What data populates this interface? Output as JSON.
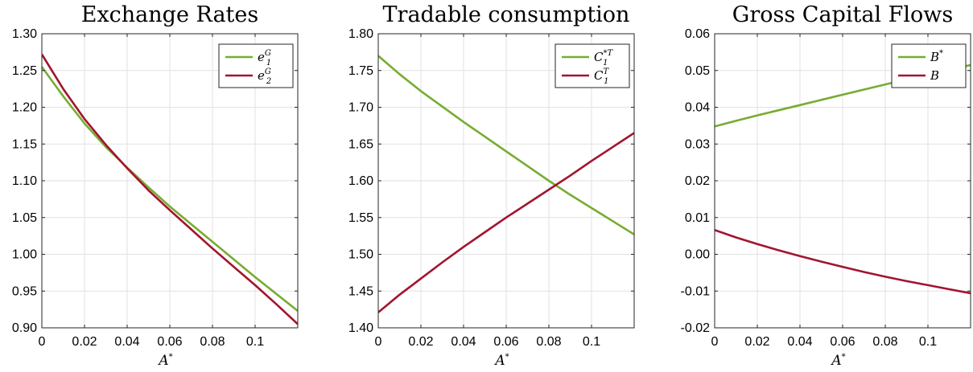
{
  "chart_data": [
    {
      "type": "line",
      "title": "Exchange Rates",
      "xlabel": "A*",
      "ylabel": "",
      "xlim": [
        0,
        0.12
      ],
      "ylim": [
        0.9,
        1.3
      ],
      "grid": true,
      "legend_position": "top-right",
      "xticks": [
        0,
        0.02,
        0.04,
        0.06,
        0.08,
        0.1
      ],
      "xtick_labels": [
        "0",
        "0.02",
        "0.04",
        "0.06",
        "0.08",
        "0.1"
      ],
      "yticks": [
        0.9,
        0.95,
        1.0,
        1.05,
        1.1,
        1.15,
        1.2,
        1.25,
        1.3
      ],
      "ytick_labels": [
        "0.90",
        "0.95",
        "1.00",
        "1.05",
        "1.10",
        "1.15",
        "1.20",
        "1.25",
        "1.30"
      ],
      "x": [
        0,
        0.01,
        0.02,
        0.03,
        0.04,
        0.05,
        0.06,
        0.07,
        0.08,
        0.09,
        0.1,
        0.11,
        0.12
      ],
      "series": [
        {
          "name": "e1G",
          "legend_base": "e",
          "legend_sub": "1",
          "legend_sup": "G",
          "color": "#77AC30",
          "values": [
            1.255,
            1.215,
            1.178,
            1.146,
            1.118,
            1.091,
            1.065,
            1.041,
            1.017,
            0.993,
            0.969,
            0.946,
            0.923
          ]
        },
        {
          "name": "e2G",
          "legend_base": "e",
          "legend_sub": "2",
          "legend_sup": "G",
          "color": "#A2142F",
          "values": [
            1.272,
            1.225,
            1.184,
            1.149,
            1.117,
            1.087,
            1.06,
            1.034,
            1.008,
            0.983,
            0.958,
            0.932,
            0.905
          ]
        }
      ]
    },
    {
      "type": "line",
      "title": "Tradable consumption",
      "xlabel": "A*",
      "ylabel": "",
      "xlim": [
        0,
        0.12
      ],
      "ylim": [
        1.4,
        1.8
      ],
      "grid": true,
      "legend_position": "top-right",
      "xticks": [
        0,
        0.02,
        0.04,
        0.06,
        0.08,
        0.1
      ],
      "xtick_labels": [
        "0",
        "0.02",
        "0.04",
        "0.06",
        "0.08",
        "0.1"
      ],
      "yticks": [
        1.4,
        1.45,
        1.5,
        1.55,
        1.6,
        1.65,
        1.7,
        1.75,
        1.8
      ],
      "ytick_labels": [
        "1.40",
        "1.45",
        "1.50",
        "1.55",
        "1.60",
        "1.65",
        "1.70",
        "1.75",
        "1.80"
      ],
      "x": [
        0,
        0.01,
        0.02,
        0.03,
        0.04,
        0.05,
        0.06,
        0.07,
        0.08,
        0.09,
        0.1,
        0.11,
        0.12
      ],
      "series": [
        {
          "name": "C1*T",
          "legend_base": "C",
          "legend_sub": "1",
          "legend_sup": "*T",
          "color": "#77AC30",
          "values": [
            1.77,
            1.745,
            1.722,
            1.701,
            1.68,
            1.66,
            1.64,
            1.62,
            1.6,
            1.581,
            1.563,
            1.545,
            1.527
          ]
        },
        {
          "name": "C1T",
          "legend_base": "C",
          "legend_sub": "1",
          "legend_sup": "T",
          "color": "#A2142F",
          "values": [
            1.421,
            1.445,
            1.467,
            1.489,
            1.51,
            1.53,
            1.55,
            1.569,
            1.588,
            1.607,
            1.627,
            1.646,
            1.665
          ]
        }
      ]
    },
    {
      "type": "line",
      "title": "Gross Capital Flows",
      "xlabel": "A*",
      "ylabel": "",
      "xlim": [
        0,
        0.12
      ],
      "ylim": [
        -0.02,
        0.06
      ],
      "grid": true,
      "legend_position": "top-right",
      "xticks": [
        0,
        0.02,
        0.04,
        0.06,
        0.08,
        0.1
      ],
      "xtick_labels": [
        "0",
        "0.02",
        "0.04",
        "0.06",
        "0.08",
        "0.1"
      ],
      "yticks": [
        -0.02,
        -0.01,
        0.0,
        0.01,
        0.02,
        0.03,
        0.04,
        0.05,
        0.06
      ],
      "ytick_labels": [
        "-0.02",
        "-0.01",
        "0.00",
        "0.01",
        "0.02",
        "0.03",
        "0.04",
        "0.05",
        "0.06"
      ],
      "x": [
        0,
        0.01,
        0.02,
        0.03,
        0.04,
        0.05,
        0.06,
        0.07,
        0.08,
        0.09,
        0.1,
        0.11,
        0.12
      ],
      "series": [
        {
          "name": "B*",
          "legend_base": "B",
          "legend_sub": "",
          "legend_sup": "*",
          "color": "#77AC30",
          "values": [
            0.0348,
            0.0363,
            0.0378,
            0.0392,
            0.0406,
            0.042,
            0.0434,
            0.0448,
            0.0462,
            0.0476,
            0.0489,
            0.0502,
            0.0515
          ]
        },
        {
          "name": "B",
          "legend_base": "B",
          "legend_sub": "",
          "legend_sup": "",
          "color": "#A2142F",
          "values": [
            0.0066,
            0.0046,
            0.0028,
            0.0011,
            -0.0005,
            -0.002,
            -0.0034,
            -0.0048,
            -0.0061,
            -0.0073,
            -0.0084,
            -0.0095,
            -0.0106
          ]
        }
      ]
    }
  ]
}
